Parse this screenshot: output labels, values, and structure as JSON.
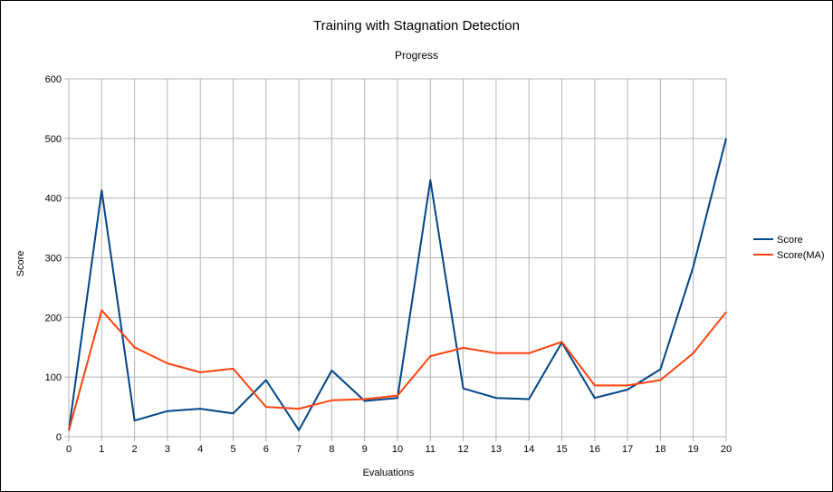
{
  "chart_data": {
    "type": "line",
    "title": "Training with Stagnation Detection",
    "subtitle": "Progress",
    "xlabel": "Evaluations",
    "ylabel": "Score",
    "x": [
      0,
      1,
      2,
      3,
      4,
      5,
      6,
      7,
      8,
      9,
      10,
      11,
      12,
      13,
      14,
      15,
      16,
      17,
      18,
      19,
      20
    ],
    "xlim": [
      0,
      20
    ],
    "ylim": [
      0,
      600
    ],
    "yticks": [
      0,
      100,
      200,
      300,
      400,
      500,
      600
    ],
    "grid": true,
    "legend_position": "right",
    "series": [
      {
        "name": "Score",
        "color": "#004586",
        "values": [
          10,
          413,
          27,
          43,
          47,
          39,
          95,
          11,
          111,
          60,
          65,
          430,
          81,
          65,
          63,
          158,
          65,
          79,
          113,
          285,
          500
        ]
      },
      {
        "name": "Score(MA)",
        "color": "#ff420e",
        "values": [
          10,
          212,
          150,
          123,
          108,
          114,
          50,
          47,
          61,
          63,
          69,
          135,
          149,
          140,
          140,
          159,
          86,
          86,
          95,
          140,
          209
        ]
      }
    ]
  }
}
